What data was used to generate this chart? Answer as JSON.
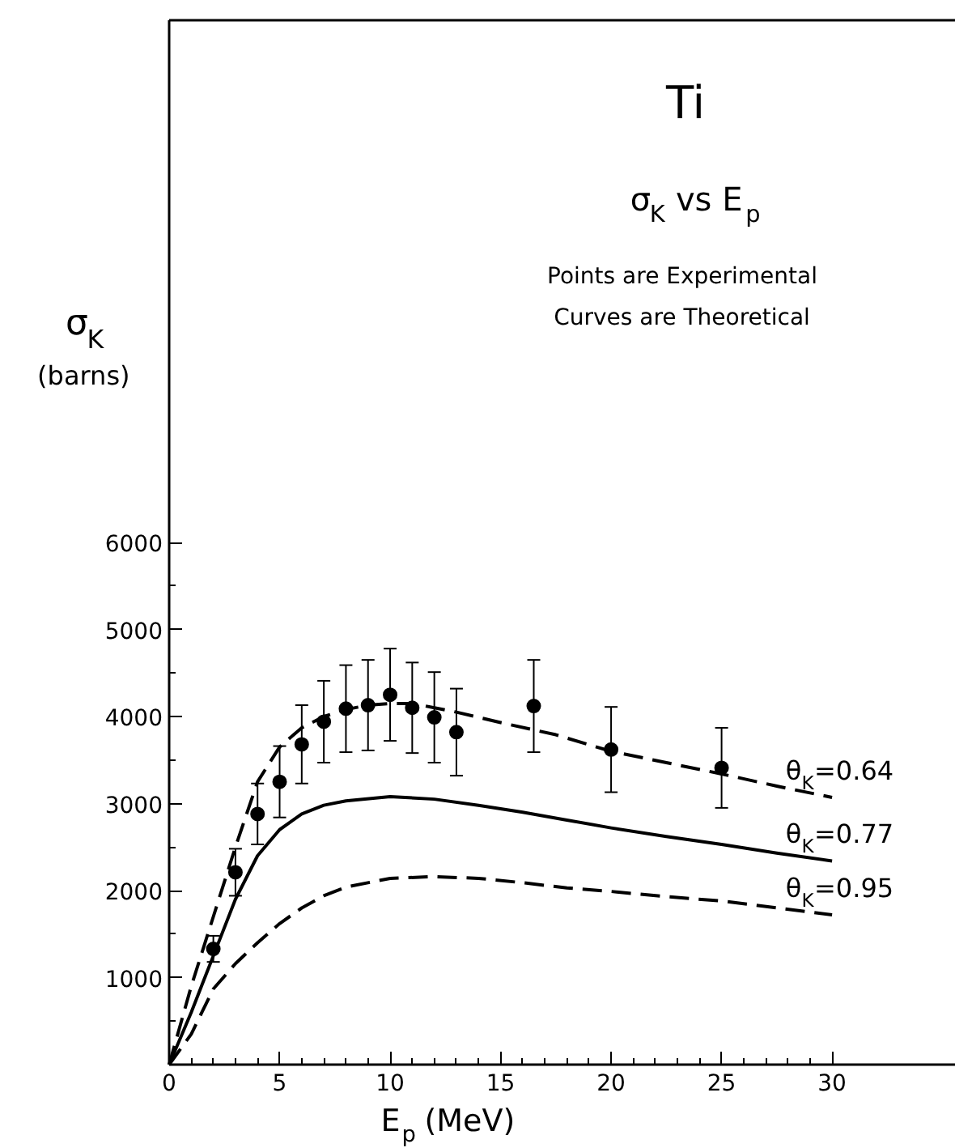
{
  "chart_data": {
    "type": "line",
    "title": "Ti",
    "subtitle": "σ$_{K}$ vs E$_{p}$",
    "xlabel": "E$_{p}$ (MeV)",
    "ylabel": "σ$_{K}$ (barns)",
    "annotations": [
      "Points are Experimental",
      "Curves are Theoretical"
    ],
    "xlim": [
      0,
      35.6
    ],
    "ylim": [
      0,
      12000
    ],
    "xticks": [
      0,
      5,
      10,
      15,
      20,
      25,
      30
    ],
    "yticks": [
      1000,
      2000,
      3000,
      4000,
      5000,
      6000
    ],
    "grid": false,
    "series": [
      {
        "type": "scatter",
        "color": "#000000",
        "marker": "circle",
        "x": [
          2,
          3,
          4,
          5,
          6,
          7,
          8,
          9,
          10,
          11,
          12,
          13,
          16.5,
          20,
          25
        ],
        "values": [
          1330,
          2210,
          2880,
          3250,
          3680,
          3940,
          4090,
          4130,
          4250,
          4100,
          3990,
          3820,
          4120,
          3620,
          3410
        ],
        "errors": [
          150,
          270,
          350,
          410,
          450,
          470,
          500,
          520,
          530,
          520,
          520,
          500,
          530,
          490,
          460
        ]
      },
      {
        "name": "θ$_{K}$=0.64",
        "color": "#000000",
        "line_style": "dashed",
        "x": [
          0,
          1,
          2,
          3,
          4,
          5,
          6,
          7,
          8,
          9,
          10,
          11,
          12,
          13,
          15,
          17.5,
          20,
          22.5,
          25,
          27.5,
          30
        ],
        "values": [
          0,
          900,
          1700,
          2500,
          3250,
          3650,
          3870,
          4000,
          4080,
          4130,
          4150,
          4150,
          4100,
          4050,
          3930,
          3790,
          3600,
          3470,
          3340,
          3200,
          3070
        ]
      },
      {
        "name": "θ$_{K}$=0.77",
        "color": "#000000",
        "line_style": "solid",
        "x": [
          0,
          1,
          2,
          3,
          4,
          5,
          6,
          7,
          8,
          10,
          12,
          14,
          16,
          18,
          20,
          22.5,
          25,
          27.5,
          30
        ],
        "values": [
          0,
          600,
          1250,
          1900,
          2400,
          2700,
          2880,
          2980,
          3030,
          3080,
          3050,
          2980,
          2900,
          2810,
          2720,
          2620,
          2530,
          2430,
          2340
        ]
      },
      {
        "name": "θ$_{K}$=0.95",
        "color": "#000000",
        "line_style": "dashed",
        "x": [
          0,
          1,
          2,
          3,
          4,
          5,
          6,
          7,
          8,
          10,
          12,
          14,
          16,
          18,
          20,
          22.5,
          25,
          27.5,
          30
        ],
        "values": [
          0,
          350,
          870,
          1160,
          1400,
          1620,
          1800,
          1940,
          2040,
          2140,
          2160,
          2140,
          2090,
          2030,
          1990,
          1930,
          1880,
          1800,
          1720
        ]
      }
    ]
  }
}
